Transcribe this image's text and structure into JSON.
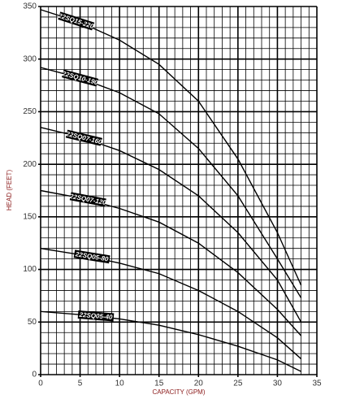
{
  "chart_data": {
    "type": "line",
    "xlabel": "CAPACITY (GPM)",
    "ylabel": "HEAD (FEET)",
    "x": [
      0,
      5,
      10,
      15,
      20,
      25,
      30,
      33
    ],
    "series": [
      {
        "name": "22SQ15-220",
        "color": "#000000",
        "values": [
          347,
          335,
          318,
          295,
          260,
          205,
          135,
          85
        ]
      },
      {
        "name": "22SQ10-190",
        "color": "#000000",
        "values": [
          292,
          282,
          268,
          248,
          215,
          170,
          110,
          73
        ]
      },
      {
        "name": "22SQ07-160",
        "color": "#000000",
        "values": [
          235,
          226,
          213,
          195,
          170,
          135,
          90,
          50
        ]
      },
      {
        "name": "22SQ07-120",
        "color": "#000000",
        "values": [
          175,
          168,
          158,
          145,
          125,
          97,
          62,
          37
        ]
      },
      {
        "name": "22SQ05-80",
        "color": "#000000",
        "values": [
          120,
          114,
          106,
          96,
          80,
          60,
          35,
          15
        ]
      },
      {
        "name": "22SQ05-40",
        "color": "#000000",
        "values": [
          60,
          57,
          53,
          47,
          38,
          27,
          14,
          3
        ]
      }
    ],
    "xlim": [
      0,
      35
    ],
    "xticks": [
      0,
      5,
      10,
      15,
      20,
      25,
      30,
      35
    ],
    "ylim": [
      0,
      350
    ],
    "yticks": [
      0,
      50,
      100,
      150,
      200,
      250,
      300,
      350
    ],
    "grid": true
  }
}
